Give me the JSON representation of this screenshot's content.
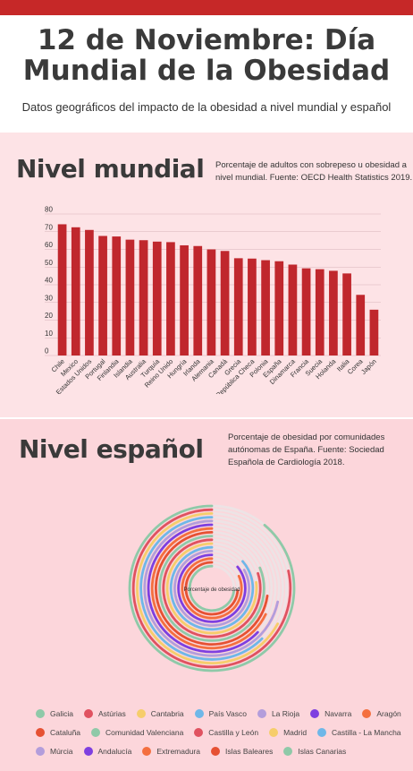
{
  "header": {
    "title_line1": "12 de Noviembre: Día",
    "title_line2": "Mundial de la Obesidad",
    "subtitle": "Datos geográficos del impacto de la obesidad a nivel mundial y español"
  },
  "world": {
    "heading": "Nivel mundial",
    "note_line1": "Porcentaje de adultos con sobrepeso u obesidad a",
    "note_line2": "nivel mundial. Fuente: OECD Health Statistics 2019."
  },
  "spain": {
    "heading": "Nivel español",
    "note_line1": "Porcentaje de obesidad por comunidades",
    "note_line2": "autónomas de España. Fuente: Sociedad",
    "note_line3": "Española de Cardiología 2018."
  },
  "chart_data": [
    {
      "type": "bar",
      "categories": [
        "Chile",
        "Mexico",
        "Estados Unidos",
        "Portugal",
        "Finlandia",
        "Islandia",
        "Australia",
        "Turquía",
        "Reino Unido",
        "Hungría",
        "Irlanda",
        "Alemania",
        "Canadá",
        "Grecia",
        "República Checa",
        "Polonia",
        "España",
        "Dinamarca",
        "Francia",
        "Suecia",
        "Holanda",
        "Italia",
        "Corea",
        "Japón"
      ],
      "values": [
        74.2,
        72.5,
        71.0,
        67.6,
        67.3,
        65.5,
        65.2,
        64.4,
        64.1,
        62.3,
        61.9,
        60.0,
        59.1,
        55.0,
        54.8,
        53.9,
        53.3,
        51.4,
        49.3,
        48.8,
        47.9,
        46.4,
        34.3,
        25.9
      ],
      "ylim": [
        0,
        80
      ],
      "yticks": [
        0,
        10,
        20,
        30,
        40,
        50,
        60,
        70,
        80
      ],
      "color": "#c0272d",
      "grid": true
    },
    {
      "type": "radial-bar",
      "center_label": "Porcentaje de obesidad",
      "series": [
        {
          "name": "Galicia",
          "color": "#8fc9a8",
          "value": 24.9
        },
        {
          "name": "Astúrias",
          "color": "#e05260",
          "value": 22.0
        },
        {
          "name": "Cantabria",
          "color": "#f6cd6b",
          "value": 18.8
        },
        {
          "name": "País Vasco",
          "color": "#6fb7e8",
          "value": 17.5
        },
        {
          "name": "La Rioja",
          "color": "#b39ddb",
          "value": 20.1
        },
        {
          "name": "Navarra",
          "color": "#7e3fe0",
          "value": 17.6
        },
        {
          "name": "Aragón",
          "color": "#f46f3f",
          "value": 19.0
        },
        {
          "name": "Cataluña",
          "color": "#e65133",
          "value": 20.4
        },
        {
          "name": "Comunidad Valenciana",
          "color": "#8fc9a8",
          "value": 22.8
        },
        {
          "name": "Castilla y León",
          "color": "#e05260",
          "value": 22.4
        },
        {
          "name": "Madrid",
          "color": "#f6cd6b",
          "value": 21.6
        },
        {
          "name": "Castilla - La Mancha",
          "color": "#6fb7e8",
          "value": 24.2
        },
        {
          "name": "Múrcia",
          "color": "#b39ddb",
          "value": 23.3
        },
        {
          "name": "Andalucía",
          "color": "#7e3fe0",
          "value": 24.1
        },
        {
          "name": "Extremadura",
          "color": "#f46f3f",
          "value": 22.9
        },
        {
          "name": "Islas Baleares",
          "color": "#e65133",
          "value": 20.6
        },
        {
          "name": "Islas Canarias",
          "color": "#8fc9a8",
          "value": 20.4
        }
      ]
    }
  ]
}
